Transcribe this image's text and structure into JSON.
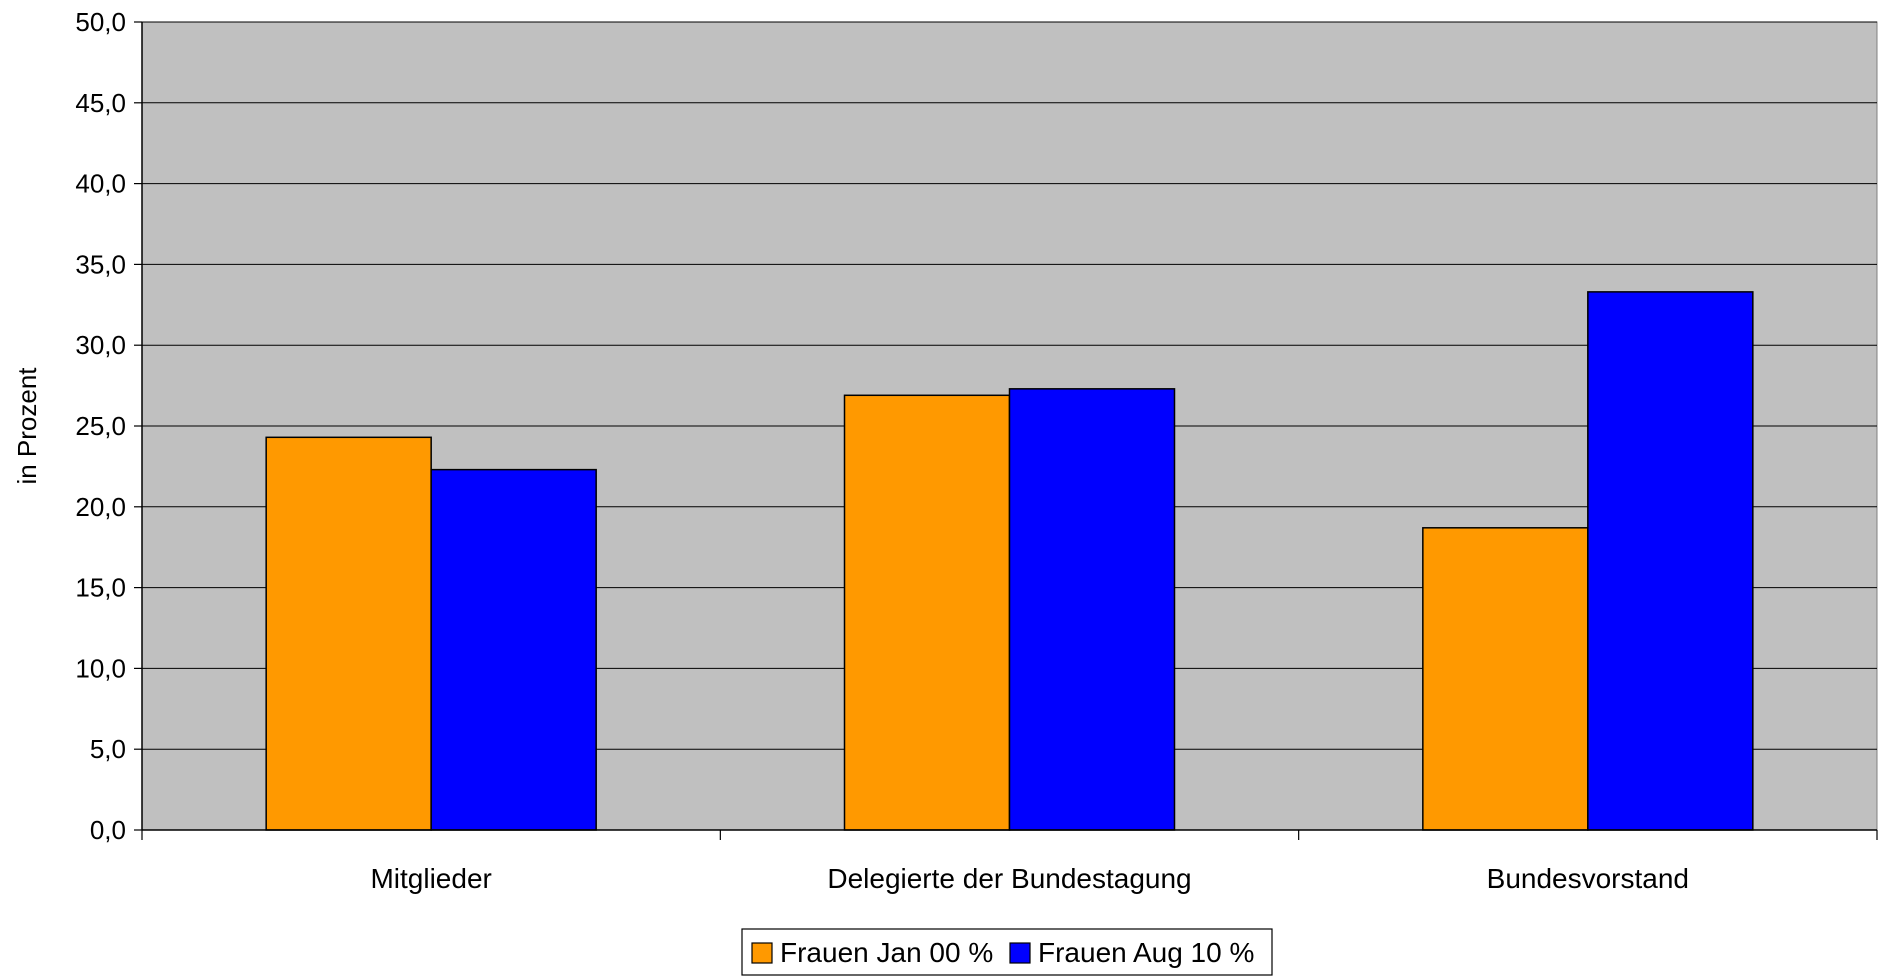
{
  "chart_data": {
    "type": "bar",
    "title": "",
    "xlabel": "",
    "ylabel": "in Prozent",
    "ylim": [
      0,
      50
    ],
    "y_ticks": [
      "0,0",
      "5,0",
      "10,0",
      "15,0",
      "20,0",
      "25,0",
      "30,0",
      "35,0",
      "40,0",
      "45,0",
      "50,0"
    ],
    "categories": [
      "Mitglieder",
      "Delegierte der Bundestagung",
      "Bundesvorstand"
    ],
    "series": [
      {
        "name": "Frauen Jan 00 %",
        "color": "#FF9900",
        "values": [
          24.3,
          26.9,
          18.7
        ]
      },
      {
        "name": "Frauen Aug 10 %",
        "color": "#0000FF",
        "values": [
          22.3,
          27.3,
          33.3
        ]
      }
    ],
    "grid": true,
    "plot_background": "#C0C0C0",
    "legend_position": "bottom-center"
  }
}
